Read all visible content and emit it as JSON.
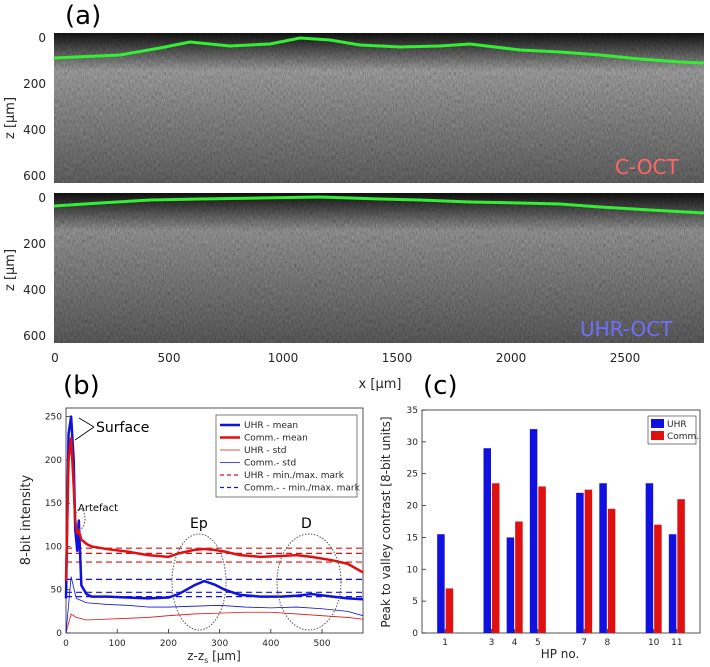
{
  "colors": {
    "uhr": "#1010e0",
    "comm": "#e01010",
    "surface_green": "#33ee33",
    "coct_label": "#ff6666",
    "uhroct_label": "#6f6fff"
  },
  "panel_a": {
    "label": "(a)",
    "top_label": "C-OCT",
    "bottom_label": "UHR-OCT",
    "ylabel": "z [μm]",
    "xlabel": "x [μm]",
    "y_ticks": [
      "0",
      "200",
      "400",
      "600"
    ],
    "x_ticks": [
      "0",
      "500",
      "1000",
      "1500",
      "2000",
      "2500"
    ]
  },
  "panel_b": {
    "label": "(b)",
    "annotations": {
      "surface": "Surface",
      "artefact": "Artefact",
      "ep": "Ep",
      "d": "D"
    },
    "legend": [
      {
        "label": "UHR - mean",
        "color": "#1010e0",
        "style": "thick"
      },
      {
        "label": "Comm.- mean",
        "color": "#e01010",
        "style": "thick"
      },
      {
        "label": "UHR - std",
        "color": "#e01010",
        "style": "thin"
      },
      {
        "label": "Comm.- std",
        "color": "#1010e0",
        "style": "thin"
      },
      {
        "label": "UHR - min./max. mark",
        "color": "#e01010",
        "style": "dashed"
      },
      {
        "label": "Comm.-  - min./max. mark",
        "color": "#1010e0",
        "style": "dashed"
      }
    ]
  },
  "panel_c": {
    "label": "(c)",
    "legend": [
      "UHR",
      "Comm."
    ]
  },
  "chart_data": [
    {
      "type": "line",
      "panel": "b",
      "xlabel": "z-z_s [μm]",
      "ylabel": "8-bit intensity",
      "xlim": [
        0,
        580
      ],
      "ylim": [
        0,
        260
      ],
      "x_ticks": [
        "0",
        "100",
        "200",
        "300",
        "400",
        "500"
      ],
      "y_ticks": [
        "0",
        "50",
        "100",
        "150",
        "200",
        "250"
      ],
      "series": [
        {
          "name": "UHR - mean",
          "x": [
            0,
            5,
            10,
            15,
            18,
            22,
            25,
            30,
            40,
            50,
            80,
            120,
            160,
            200,
            220,
            250,
            270,
            290,
            310,
            340,
            380,
            420,
            450,
            480,
            520,
            550,
            580
          ],
          "y": [
            40,
            230,
            250,
            200,
            120,
            95,
            130,
            55,
            45,
            42,
            42,
            41,
            40,
            41,
            45,
            55,
            60,
            56,
            50,
            44,
            42,
            42,
            43,
            45,
            42,
            40,
            39
          ]
        },
        {
          "name": "Comm.- mean",
          "x": [
            0,
            5,
            10,
            15,
            18,
            22,
            25,
            30,
            40,
            50,
            80,
            120,
            160,
            200,
            220,
            250,
            270,
            290,
            310,
            340,
            380,
            420,
            450,
            480,
            520,
            550,
            580
          ],
          "y": [
            60,
            200,
            225,
            170,
            130,
            115,
            118,
            108,
            103,
            100,
            97,
            94,
            90,
            88,
            92,
            96,
            97,
            96,
            94,
            90,
            88,
            89,
            90,
            88,
            84,
            80,
            70
          ]
        },
        {
          "name": "UHR - std",
          "x": [
            0,
            10,
            20,
            40,
            80,
            120,
            160,
            200,
            250,
            300,
            350,
            400,
            450,
            500,
            550,
            580
          ],
          "y": [
            0,
            22,
            18,
            15,
            16,
            17,
            18,
            20,
            22,
            23,
            24,
            24,
            22,
            20,
            18,
            16
          ]
        },
        {
          "name": "Comm.- std",
          "x": [
            0,
            10,
            20,
            40,
            80,
            120,
            160,
            200,
            250,
            300,
            350,
            400,
            450,
            500,
            550,
            580
          ],
          "y": [
            0,
            65,
            40,
            35,
            33,
            32,
            30,
            30,
            31,
            32,
            30,
            29,
            30,
            28,
            25,
            20
          ]
        }
      ],
      "marks": {
        "uhr_min_max": [
          82,
          92,
          98
        ],
        "comm_min_max": [
          42,
          47,
          62
        ]
      }
    },
    {
      "type": "bar",
      "panel": "c",
      "xlabel": "HP no.",
      "ylabel": "Peak to valley contrast [8-bit units]",
      "ylim": [
        0,
        35
      ],
      "y_ticks": [
        "0",
        "5",
        "10",
        "15",
        "20",
        "25",
        "30",
        "35"
      ],
      "categories": [
        "1",
        "3",
        "4",
        "5",
        "7",
        "8",
        "10",
        "11"
      ],
      "category_positions": [
        1,
        3,
        4,
        5,
        7,
        8,
        10,
        11
      ],
      "xlim": [
        0,
        12
      ],
      "series": [
        {
          "name": "UHR",
          "values": [
            15.5,
            29,
            15,
            32,
            22,
            23.5,
            23.5,
            15.5
          ]
        },
        {
          "name": "Comm.",
          "values": [
            7,
            23.5,
            17.5,
            23,
            22.5,
            19.5,
            17,
            21
          ]
        }
      ]
    }
  ]
}
